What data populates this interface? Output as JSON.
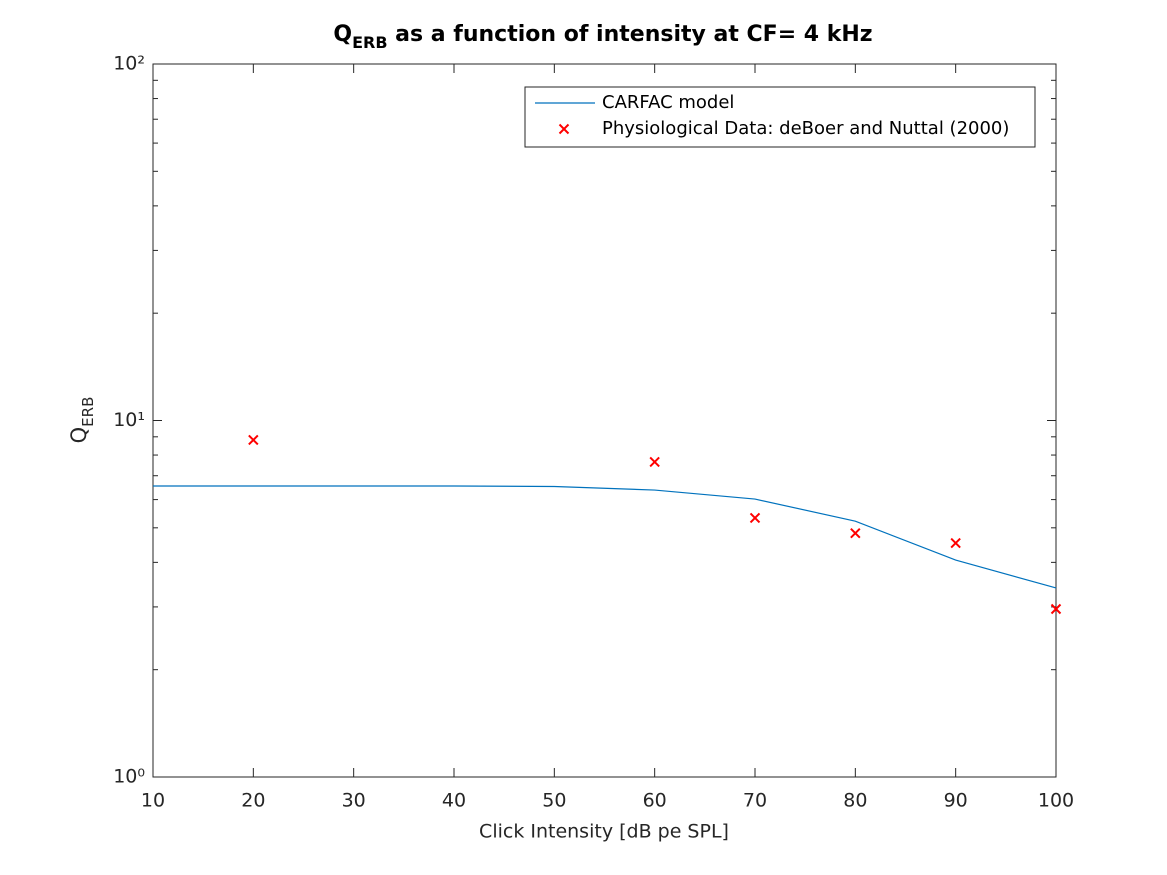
{
  "chart_data": {
    "type": "line",
    "title": {
      "main": "Q",
      "sub": "ERB",
      "rest": " as a function of intensity at CF= 4 kHz"
    },
    "x_label": "Click Intensity [dB pe SPL]",
    "y_label": {
      "main": "Q",
      "sub": "ERB"
    },
    "xlim": [
      10,
      100
    ],
    "xticks": [
      10,
      20,
      30,
      40,
      50,
      60,
      70,
      80,
      90,
      100
    ],
    "ylim": [
      1,
      100
    ],
    "yticks": [
      {
        "value": 1,
        "label": "10⁰"
      },
      {
        "value": 10,
        "label": "10¹"
      },
      {
        "value": 100,
        "label": "10²"
      }
    ],
    "y_scale": "log",
    "grid": false,
    "legend": "northeast",
    "series": [
      {
        "name": "CARFAC model",
        "color": "#0072bd",
        "mode": "line",
        "x": [
          10,
          20,
          30,
          40,
          50,
          60,
          70,
          80,
          90,
          100
        ],
        "values": [
          6.55,
          6.55,
          6.55,
          6.55,
          6.53,
          6.38,
          6.02,
          5.22,
          4.06,
          3.39
        ]
      },
      {
        "name": "Physiological Data: deBoer and Nuttal (2000)",
        "color": "#ff0000",
        "mode": "markers",
        "marker": "x",
        "x": [
          20,
          60,
          70,
          80,
          90,
          100
        ],
        "values": [
          8.82,
          7.65,
          5.33,
          4.83,
          4.53,
          2.96
        ]
      }
    ]
  }
}
